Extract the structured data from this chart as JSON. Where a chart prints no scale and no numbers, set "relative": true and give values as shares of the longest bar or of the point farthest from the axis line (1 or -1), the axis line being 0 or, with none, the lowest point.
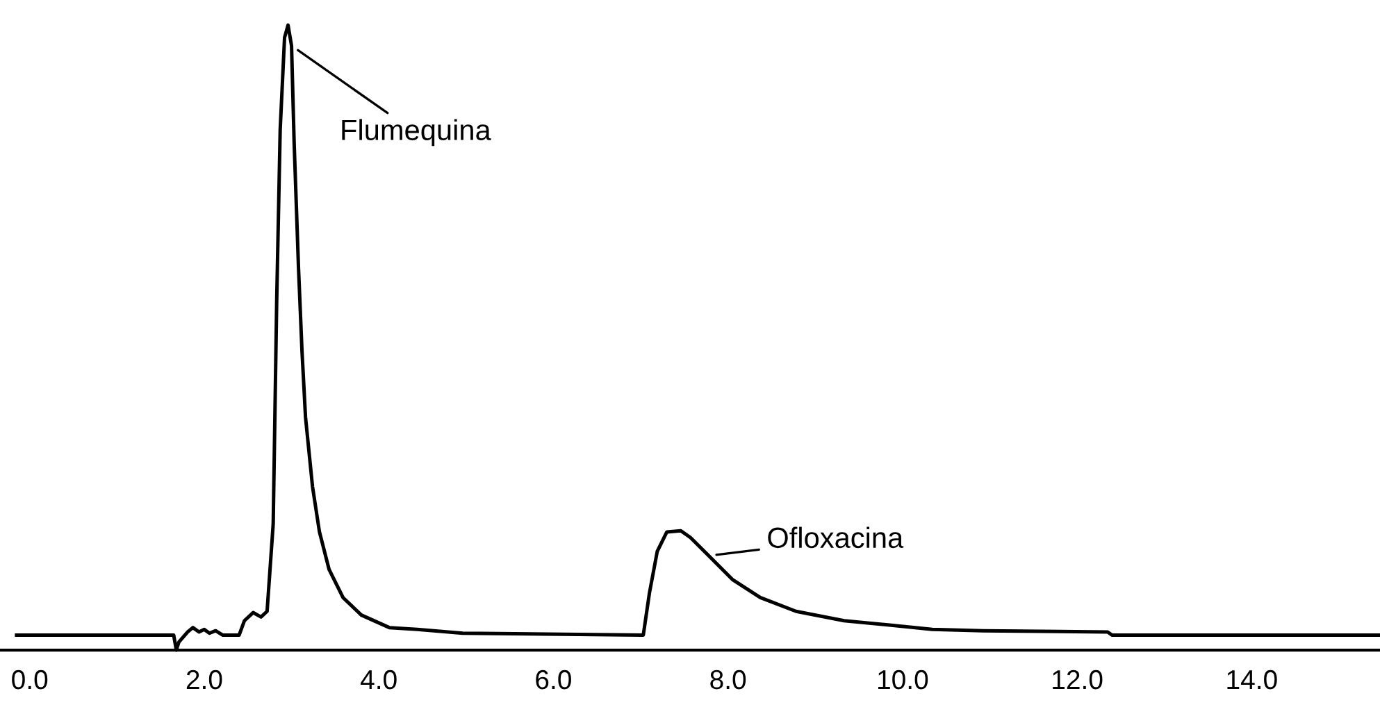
{
  "chart_data": {
    "type": "line",
    "relative": true,
    "xlim": [
      -0.34,
      15.47
    ],
    "xticks": [
      {
        "value": 0,
        "label": "0.0"
      },
      {
        "value": 2,
        "label": "2.0"
      },
      {
        "value": 4,
        "label": "4.0"
      },
      {
        "value": 6,
        "label": "6.0"
      },
      {
        "value": 8,
        "label": "8.0"
      },
      {
        "value": 10,
        "label": "10.0"
      },
      {
        "value": 12,
        "label": "12.0"
      },
      {
        "value": 14,
        "label": "14.0"
      }
    ],
    "tick_labels": "x",
    "grid": false,
    "marker": "none",
    "line_style": "solid",
    "series": [
      {
        "color": "#000000",
        "x": [
          -0.15,
          1.65,
          1.68,
          1.71,
          1.81,
          1.87,
          1.94,
          2.0,
          2.06,
          2.13,
          2.21,
          2.4,
          2.46,
          2.56,
          2.65,
          2.72,
          2.79,
          2.83,
          2.87,
          2.92,
          2.96,
          3.0,
          3.03,
          3.08,
          3.12,
          3.16,
          3.24,
          3.32,
          3.43,
          3.59,
          3.8,
          4.12,
          4.44,
          4.96,
          7.03,
          7.1,
          7.19,
          7.3,
          7.46,
          7.57,
          7.78,
          8.05,
          8.37,
          8.78,
          9.33,
          9.85,
          10.34,
          10.92,
          12.35,
          12.4,
          15.47
        ],
        "values": [
          0.024,
          0.024,
          0.0,
          0.013,
          0.029,
          0.036,
          0.029,
          0.033,
          0.027,
          0.031,
          0.024,
          0.024,
          0.047,
          0.06,
          0.053,
          0.062,
          0.202,
          0.558,
          0.833,
          0.98,
          1.0,
          0.967,
          0.811,
          0.611,
          0.478,
          0.373,
          0.262,
          0.189,
          0.129,
          0.084,
          0.056,
          0.036,
          0.033,
          0.027,
          0.024,
          0.091,
          0.158,
          0.189,
          0.191,
          0.18,
          0.151,
          0.113,
          0.084,
          0.062,
          0.047,
          0.04,
          0.033,
          0.031,
          0.029,
          0.024,
          0.024
        ]
      }
    ],
    "annotations": [
      {
        "text": "Flumequina",
        "x": 3.0,
        "y": 0.967
      },
      {
        "text": "Ofloxacina",
        "x": 7.78,
        "y": 0.151
      }
    ]
  }
}
